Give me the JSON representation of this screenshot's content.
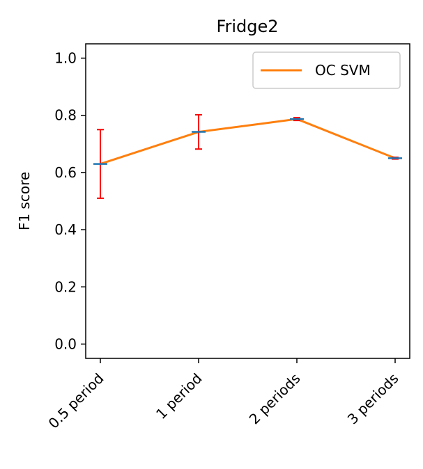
{
  "chart_data": {
    "type": "line",
    "title": "Fridge2",
    "xlabel": "",
    "ylabel": "F1 score",
    "categories": [
      "0.5 period",
      "1 period",
      "2 periods",
      "3 periods"
    ],
    "ylim": [
      -0.05,
      1.05
    ],
    "yticks": [
      "0.0",
      "0.2",
      "0.4",
      "0.6",
      "0.8",
      "1.0"
    ],
    "series": [
      {
        "name": "OC SVM",
        "values": [
          0.63,
          0.742,
          0.787,
          0.65
        ],
        "error": [
          0.12,
          0.06,
          0.005,
          0.003
        ],
        "color": "#ff7f0e",
        "errorbar_color": "#ff0000",
        "marker_color": "#1f77b4"
      }
    ],
    "legend": {
      "position": "top-right"
    },
    "grid": false
  }
}
